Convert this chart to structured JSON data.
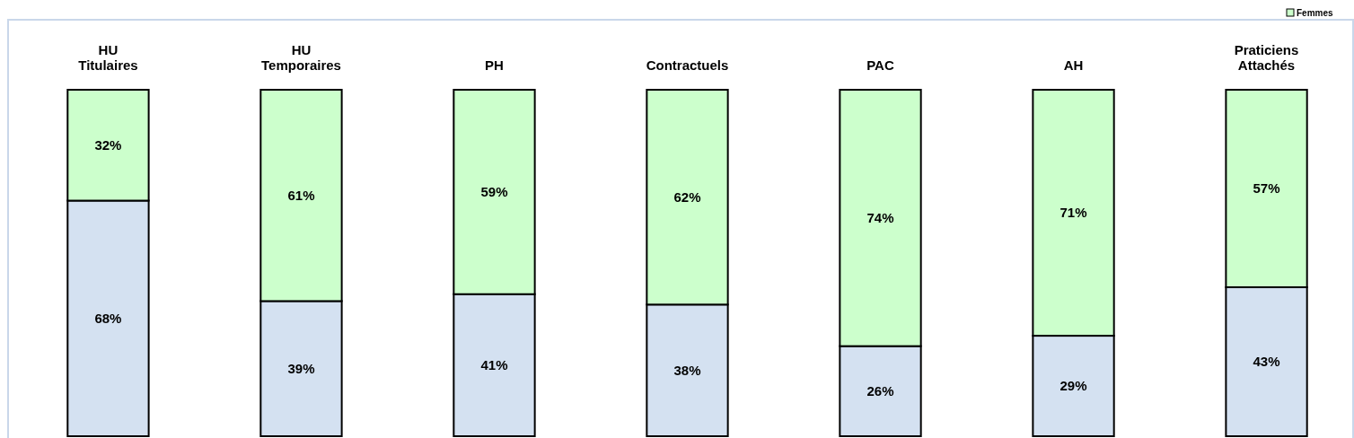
{
  "chart_data": {
    "type": "bar",
    "stacked": true,
    "categories": [
      "HU\nTitulaires",
      "HU\nTemporaires",
      "PH",
      "Contractuels",
      "PAC",
      "AH",
      "Praticiens\nAttachés"
    ],
    "series": [
      {
        "color": "#d4e1f1",
        "values": [
          68,
          39,
          41,
          38,
          26,
          29,
          43
        ],
        "value_labels": [
          "68%",
          "39%",
          "41%",
          "38%",
          "26%",
          "29%",
          "43%"
        ]
      },
      {
        "name": "Femmes",
        "color": "#ccffcc",
        "values": [
          32,
          61,
          59,
          62,
          74,
          71,
          57
        ],
        "value_labels": [
          "32%",
          "61%",
          "59%",
          "62%",
          "74%",
          "71%",
          "57%"
        ]
      }
    ],
    "ylim": [
      0,
      100
    ],
    "tick_labels": false,
    "legend": "top right"
  }
}
